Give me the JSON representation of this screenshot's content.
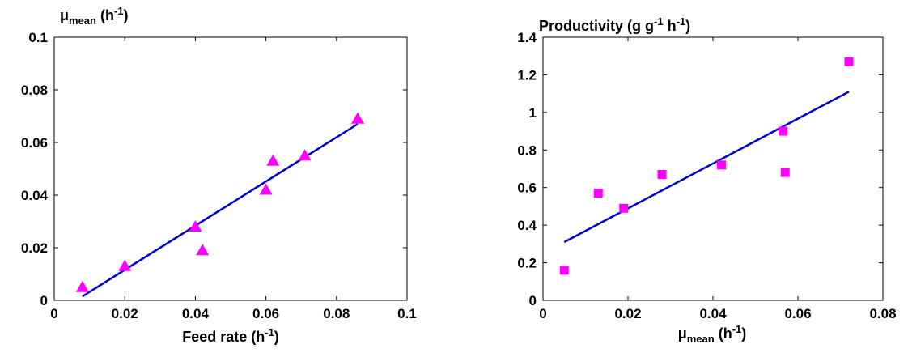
{
  "chart_data": [
    {
      "type": "scatter",
      "title": "",
      "ylabel": {
        "base": "μ",
        "sub": "mean",
        "unit_pre": " (h",
        "sup": "-1",
        "unit_post": ")"
      },
      "xlabel": {
        "base": "Feed rate (h",
        "sup": "-1",
        "post": ")"
      },
      "xlim": [
        0,
        0.1
      ],
      "ylim": [
        0,
        0.1
      ],
      "xticks": [
        0,
        0.02,
        0.04,
        0.06,
        0.08,
        0.1
      ],
      "xtick_labels": [
        "0",
        "0.02",
        "0.04",
        "0.06",
        "0.08",
        "0.1"
      ],
      "yticks": [
        0,
        0.02,
        0.04,
        0.06,
        0.08,
        0.1
      ],
      "ytick_labels": [
        "0",
        "0.02",
        "0.04",
        "0.06",
        "0.08",
        "0.1"
      ],
      "marker": "triangle",
      "marker_color": "#ff00ff",
      "line_color": "#0000cc",
      "points": [
        {
          "x": 0.008,
          "y": 0.005
        },
        {
          "x": 0.02,
          "y": 0.013
        },
        {
          "x": 0.04,
          "y": 0.028
        },
        {
          "x": 0.042,
          "y": 0.019
        },
        {
          "x": 0.06,
          "y": 0.042
        },
        {
          "x": 0.062,
          "y": 0.053
        },
        {
          "x": 0.071,
          "y": 0.055
        },
        {
          "x": 0.086,
          "y": 0.069
        }
      ],
      "fit_line": [
        {
          "x": 0.008,
          "y": 0.0015
        },
        {
          "x": 0.086,
          "y": 0.067
        }
      ]
    },
    {
      "type": "scatter",
      "title": "",
      "ylabel": {
        "base": "Productivity (g g",
        "sup1": "-1",
        "mid": " h",
        "sup2": "-1",
        "post": ")"
      },
      "xlabel": {
        "base": "μ",
        "sub": "mean",
        "unit_pre": " (h",
        "sup": "-1",
        "unit_post": ")"
      },
      "xlim": [
        0,
        0.08
      ],
      "ylim": [
        0,
        1.4
      ],
      "xticks": [
        0,
        0.02,
        0.04,
        0.06,
        0.08
      ],
      "xtick_labels": [
        "0",
        "0.02",
        "0.04",
        "0.06",
        "0.08"
      ],
      "yticks": [
        0,
        0.2,
        0.4,
        0.6,
        0.8,
        1.0,
        1.2,
        1.4
      ],
      "ytick_labels": [
        "0",
        "0.2",
        "0.4",
        "0.6",
        "0.8",
        "1",
        "1.2",
        "1.4"
      ],
      "marker": "square",
      "marker_color": "#ff00ff",
      "line_color": "#0000cc",
      "points": [
        {
          "x": 0.005,
          "y": 0.16
        },
        {
          "x": 0.013,
          "y": 0.57
        },
        {
          "x": 0.019,
          "y": 0.49
        },
        {
          "x": 0.028,
          "y": 0.67
        },
        {
          "x": 0.042,
          "y": 0.72
        },
        {
          "x": 0.0565,
          "y": 0.9
        },
        {
          "x": 0.057,
          "y": 0.68
        },
        {
          "x": 0.072,
          "y": 1.27
        }
      ],
      "fit_line": [
        {
          "x": 0.005,
          "y": 0.31
        },
        {
          "x": 0.072,
          "y": 1.11
        }
      ]
    }
  ]
}
